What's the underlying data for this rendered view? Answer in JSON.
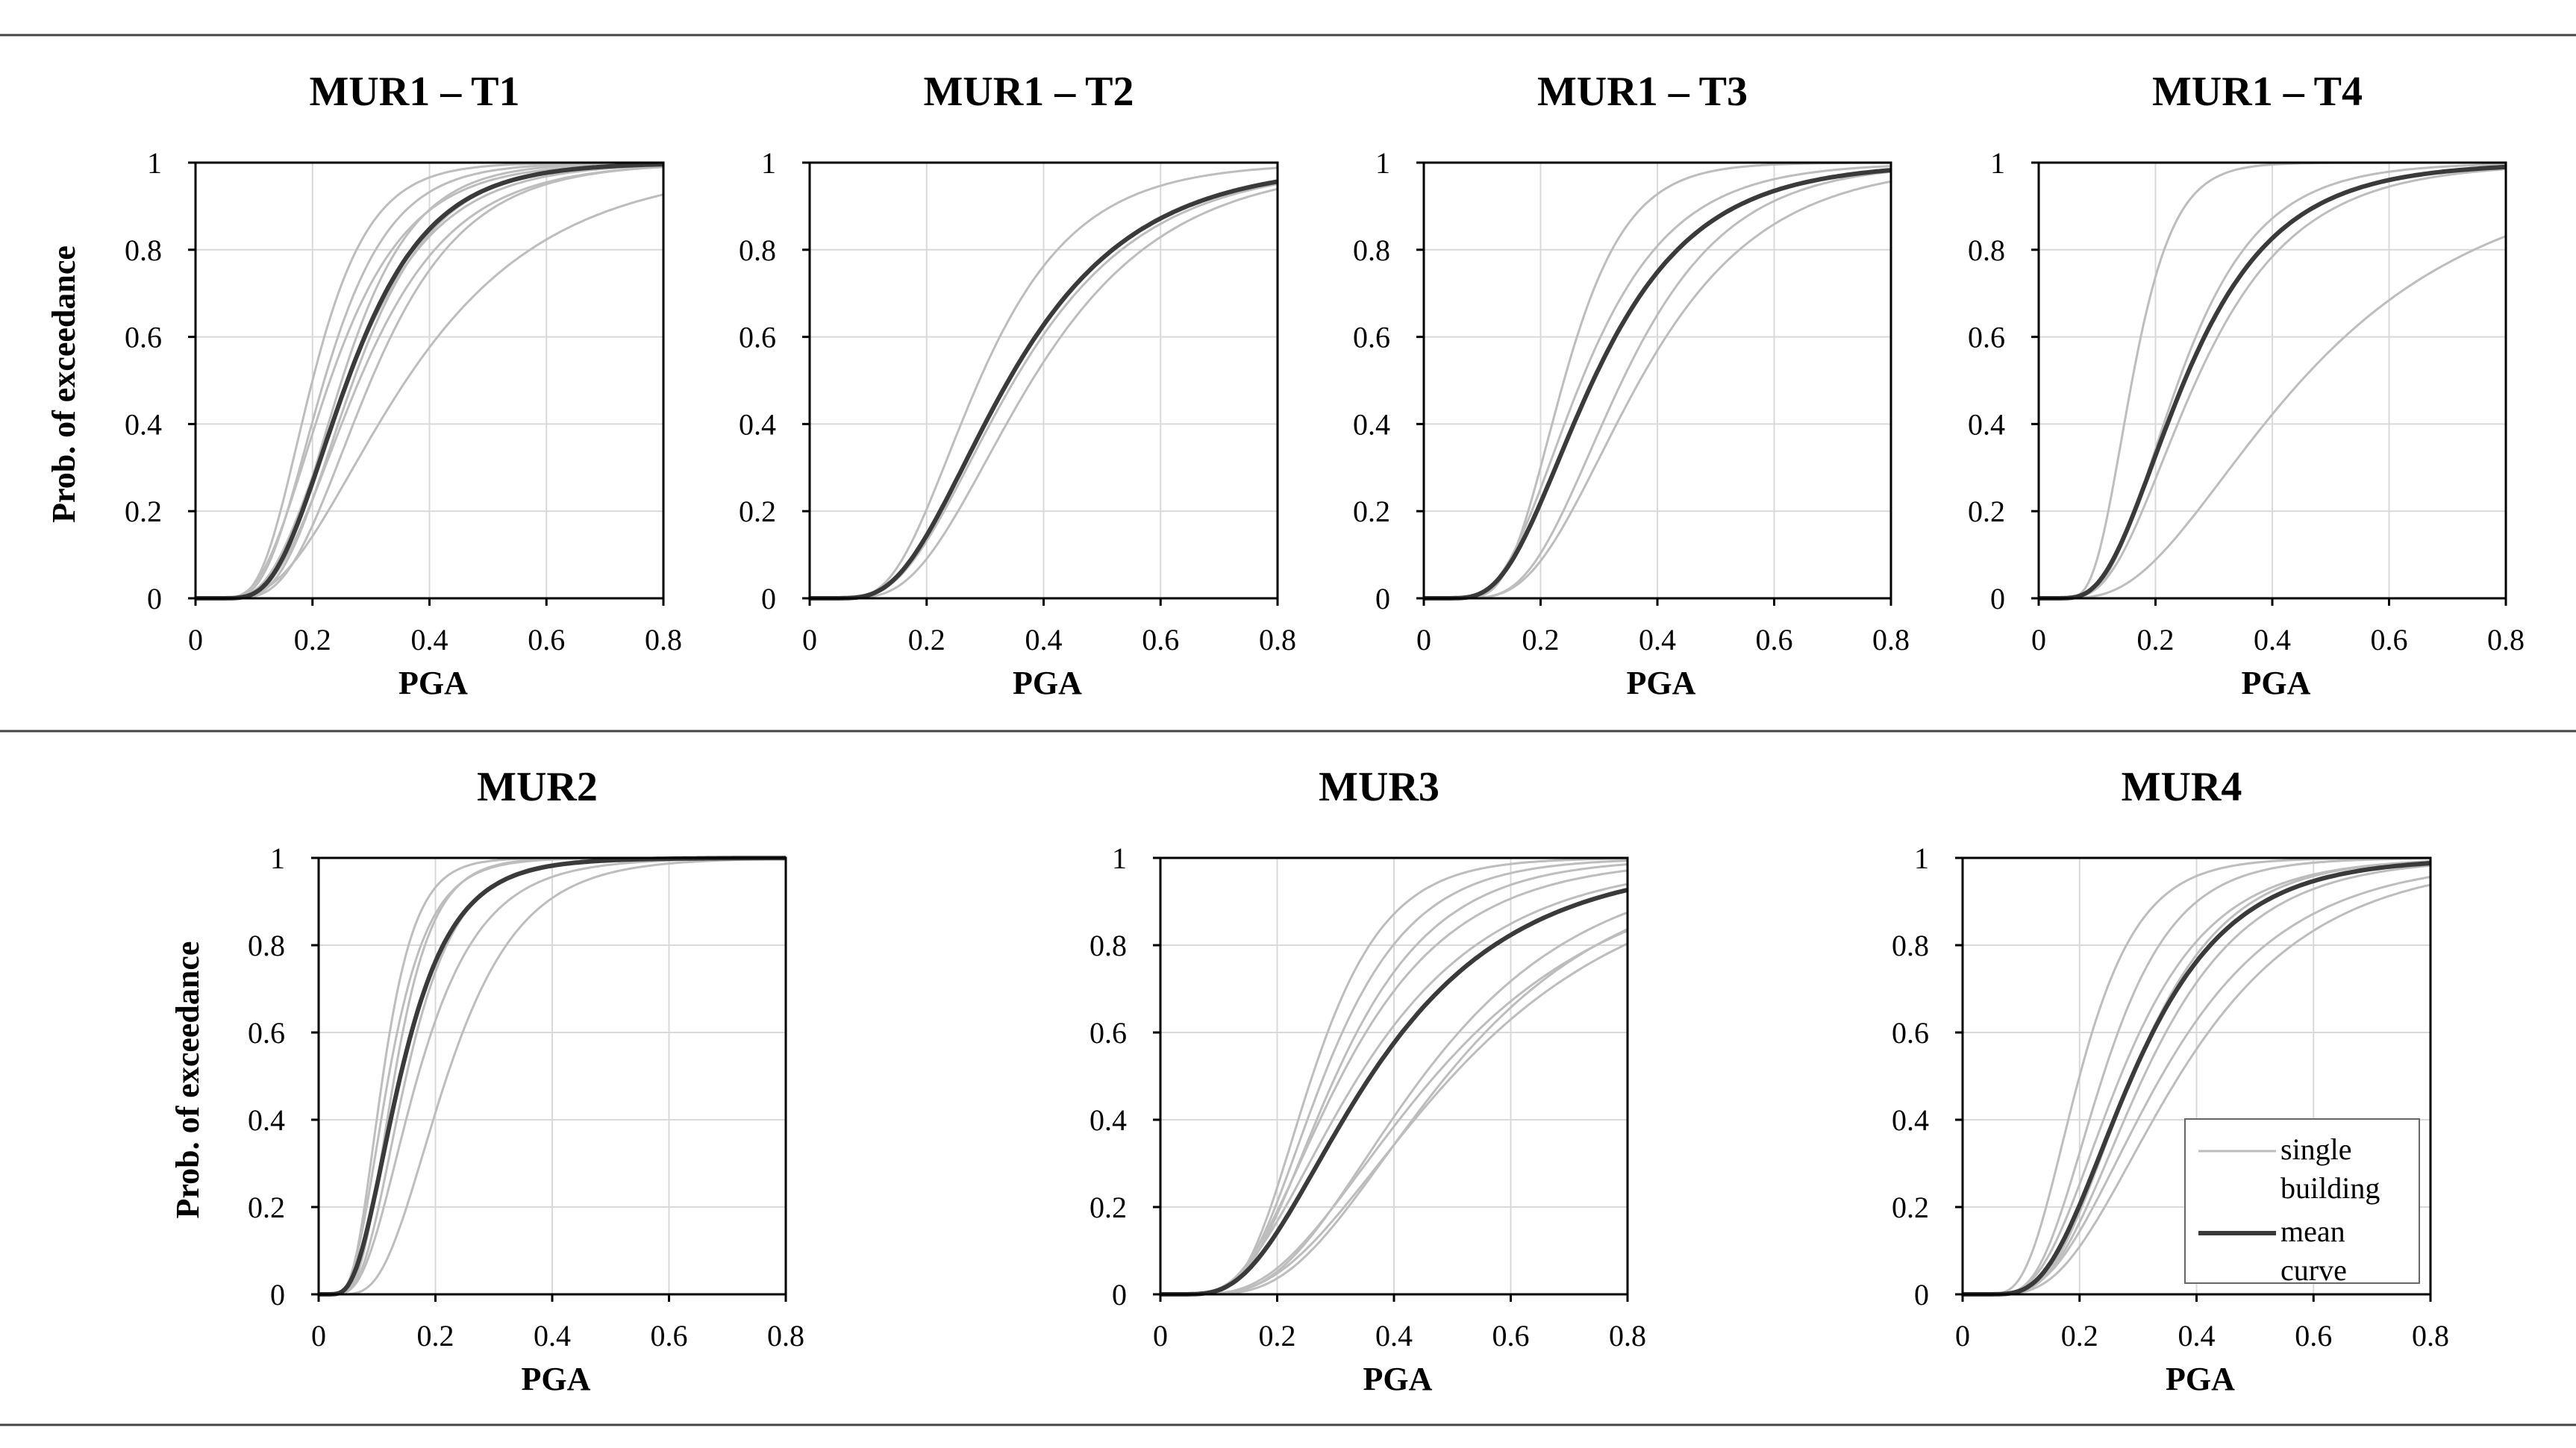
{
  "figure": {
    "colors": {
      "single_building": "#bdbdbd",
      "mean_curve": "#3a3a3a",
      "grid": "#d9d9d9",
      "axis": "#000000",
      "rule": "#444444"
    }
  },
  "chart_data": [
    {
      "type": "line",
      "title": "MUR1 – T1",
      "xlabel": "PGA",
      "ylabel": "Prob. of exceedance",
      "xlim": [
        0,
        0.8
      ],
      "ylim": [
        0,
        1
      ],
      "xticks": [
        "0",
        "0.2",
        "0.4",
        "0.6",
        "0.8"
      ],
      "yticks": [
        "0",
        "0.2",
        "0.4",
        "0.6",
        "0.8",
        "1"
      ],
      "grid": true,
      "curve_model": "lognormal CDF: P = Phi(ln(x/median)/beta)",
      "series": [
        {
          "name": "mean curve",
          "median": 0.26,
          "beta": 0.42
        },
        {
          "name": "single building",
          "median": 0.2,
          "beta": 0.38
        },
        {
          "name": "single building",
          "median": 0.22,
          "beta": 0.4
        },
        {
          "name": "single building",
          "median": 0.23,
          "beta": 0.45
        },
        {
          "name": "single building",
          "median": 0.25,
          "beta": 0.38
        },
        {
          "name": "single building",
          "median": 0.26,
          "beta": 0.45
        },
        {
          "name": "single building",
          "median": 0.27,
          "beta": 0.4
        },
        {
          "name": "single building",
          "median": 0.28,
          "beta": 0.45
        },
        {
          "name": "single building",
          "median": 0.3,
          "beta": 0.42
        },
        {
          "name": "single building",
          "median": 0.36,
          "beta": 0.55
        }
      ]
    },
    {
      "type": "line",
      "title": "MUR1 – T2",
      "xlabel": "PGA",
      "ylabel": "",
      "xlim": [
        0,
        0.8
      ],
      "ylim": [
        0,
        1
      ],
      "xticks": [
        "0",
        "0.2",
        "0.4",
        "0.6",
        "0.8"
      ],
      "yticks": [
        "0",
        "0.2",
        "0.4",
        "0.6",
        "0.8",
        "1"
      ],
      "grid": true,
      "curve_model": "lognormal CDF: P = Phi(ln(x/median)/beta)",
      "series": [
        {
          "name": "mean curve",
          "median": 0.34,
          "beta": 0.5
        },
        {
          "name": "single building",
          "median": 0.29,
          "beta": 0.45
        },
        {
          "name": "single building",
          "median": 0.35,
          "beta": 0.5
        },
        {
          "name": "single building",
          "median": 0.38,
          "beta": 0.48
        }
      ]
    },
    {
      "type": "line",
      "title": "MUR1 – T3",
      "xlabel": "PGA",
      "ylabel": "",
      "xlim": [
        0,
        0.8
      ],
      "ylim": [
        0,
        1
      ],
      "xticks": [
        "0",
        "0.2",
        "0.4",
        "0.6",
        "0.8"
      ],
      "yticks": [
        "0",
        "0.2",
        "0.4",
        "0.6",
        "0.8",
        "1"
      ],
      "grid": true,
      "curve_model": "lognormal CDF: P = Phi(ln(x/median)/beta)",
      "series": [
        {
          "name": "mean curve",
          "median": 0.29,
          "beta": 0.48
        },
        {
          "name": "single building",
          "median": 0.24,
          "beta": 0.35
        },
        {
          "name": "single building",
          "median": 0.27,
          "beta": 0.45
        },
        {
          "name": "single building",
          "median": 0.34,
          "beta": 0.42
        },
        {
          "name": "single building",
          "median": 0.37,
          "beta": 0.45
        }
      ]
    },
    {
      "type": "line",
      "title": "MUR1 – T4",
      "xlabel": "PGA",
      "ylabel": "",
      "xlim": [
        0,
        0.8
      ],
      "ylim": [
        0,
        1
      ],
      "xticks": [
        "0",
        "0.2",
        "0.4",
        "0.6",
        "0.8"
      ],
      "yticks": [
        "0",
        "0.2",
        "0.4",
        "0.6",
        "0.8",
        "1"
      ],
      "grid": true,
      "curve_model": "lognormal CDF: P = Phi(ln(x/median)/beta)",
      "series": [
        {
          "name": "mean curve",
          "median": 0.25,
          "beta": 0.5
        },
        {
          "name": "single building",
          "median": 0.16,
          "beta": 0.35
        },
        {
          "name": "single building",
          "median": 0.24,
          "beta": 0.45
        },
        {
          "name": "single building",
          "median": 0.27,
          "beta": 0.5
        },
        {
          "name": "single building",
          "median": 0.45,
          "beta": 0.6
        }
      ]
    },
    {
      "type": "line",
      "title": "MUR2",
      "xlabel": "PGA",
      "ylabel": "Prob. of exceedance",
      "xlim": [
        0,
        0.8
      ],
      "ylim": [
        0,
        1
      ],
      "xticks": [
        "0",
        "0.2",
        "0.4",
        "0.6",
        "0.8"
      ],
      "yticks": [
        "0",
        "0.2",
        "0.4",
        "0.6",
        "0.8",
        "1"
      ],
      "grid": true,
      "curve_model": "lognormal CDF: P = Phi(ln(x/median)/beta)",
      "series": [
        {
          "name": "mean curve",
          "median": 0.14,
          "beta": 0.5
        },
        {
          "name": "single building",
          "median": 0.11,
          "beta": 0.4
        },
        {
          "name": "single building",
          "median": 0.12,
          "beta": 0.45
        },
        {
          "name": "single building",
          "median": 0.13,
          "beta": 0.4
        },
        {
          "name": "single building",
          "median": 0.14,
          "beta": 0.5
        },
        {
          "name": "single building",
          "median": 0.15,
          "beta": 0.45
        },
        {
          "name": "single building",
          "median": 0.17,
          "beta": 0.5
        },
        {
          "name": "single building",
          "median": 0.22,
          "beta": 0.45
        }
      ]
    },
    {
      "type": "line",
      "title": "MUR3",
      "xlabel": "PGA",
      "ylabel": "",
      "xlim": [
        0,
        0.8
      ],
      "ylim": [
        0,
        1
      ],
      "xticks": [
        "0",
        "0.2",
        "0.4",
        "0.6",
        "0.8"
      ],
      "yticks": [
        "0",
        "0.2",
        "0.4",
        "0.6",
        "0.8",
        "1"
      ],
      "grid": true,
      "curve_model": "lognormal CDF: P = Phi(ln(x/median)/beta)",
      "series": [
        {
          "name": "mean curve",
          "median": 0.36,
          "beta": 0.55
        },
        {
          "name": "single building",
          "median": 0.26,
          "beta": 0.38
        },
        {
          "name": "single building",
          "median": 0.28,
          "beta": 0.42
        },
        {
          "name": "single building",
          "median": 0.3,
          "beta": 0.45
        },
        {
          "name": "single building",
          "median": 0.31,
          "beta": 0.5
        },
        {
          "name": "single building",
          "median": 0.34,
          "beta": 0.55
        },
        {
          "name": "single building",
          "median": 0.45,
          "beta": 0.5
        },
        {
          "name": "single building",
          "median": 0.47,
          "beta": 0.55
        },
        {
          "name": "single building",
          "median": 0.49,
          "beta": 0.5
        },
        {
          "name": "single building",
          "median": 0.5,
          "beta": 0.55
        }
      ]
    },
    {
      "type": "line",
      "title": "MUR4",
      "xlabel": "PGA",
      "ylabel": "",
      "xlim": [
        0,
        0.8
      ],
      "ylim": [
        0,
        1
      ],
      "xticks": [
        "0",
        "0.2",
        "0.4",
        "0.6",
        "0.8"
      ],
      "yticks": [
        "0",
        "0.2",
        "0.4",
        "0.6",
        "0.8",
        "1"
      ],
      "grid": true,
      "curve_model": "lognormal CDF: P = Phi(ln(x/median)/beta)",
      "series": [
        {
          "name": "mean curve",
          "median": 0.29,
          "beta": 0.45
        },
        {
          "name": "single building",
          "median": 0.2,
          "beta": 0.4
        },
        {
          "name": "single building",
          "median": 0.24,
          "beta": 0.4
        },
        {
          "name": "single building",
          "median": 0.27,
          "beta": 0.45
        },
        {
          "name": "single building",
          "median": 0.29,
          "beta": 0.42
        },
        {
          "name": "single building",
          "median": 0.31,
          "beta": 0.45
        },
        {
          "name": "single building",
          "median": 0.34,
          "beta": 0.5
        },
        {
          "name": "single building",
          "median": 0.37,
          "beta": 0.5
        }
      ],
      "legend": {
        "placement": "bottom-right",
        "entries": [
          {
            "label_lines": [
              "single",
              "building"
            ],
            "style": "single"
          },
          {
            "label_lines": [
              "mean",
              "curve"
            ],
            "style": "mean"
          }
        ]
      }
    }
  ]
}
